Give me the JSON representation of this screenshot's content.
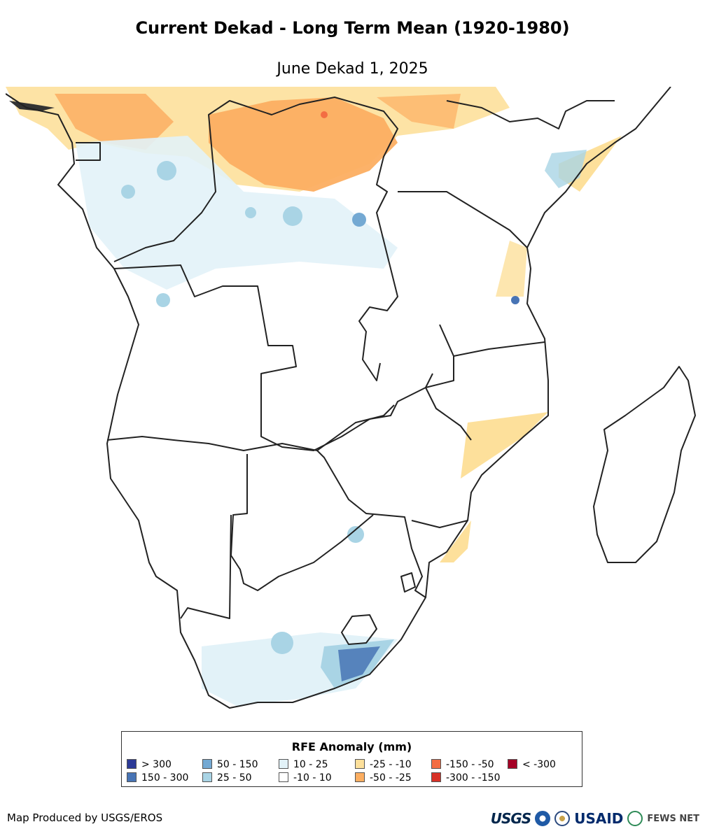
{
  "header": {
    "title": "Current Dekad - Long Term Mean (1920-1980)",
    "subtitle": "June Dekad 1, 2025"
  },
  "legend": {
    "title": "RFE Anomaly (mm)",
    "items": [
      {
        "label": "> 300",
        "color": "#2c3a97"
      },
      {
        "label": "150 - 300",
        "color": "#4874b5"
      },
      {
        "label": "50 - 150",
        "color": "#74a9d3"
      },
      {
        "label": "25 - 50",
        "color": "#a9d4e5"
      },
      {
        "label": "10 - 25",
        "color": "#e2f2f8"
      },
      {
        "label": "-10 - 10",
        "color": "#ffffff"
      },
      {
        "label": "-25 - -10",
        "color": "#fde09b"
      },
      {
        "label": "-50 - -25",
        "color": "#fcae61"
      },
      {
        "label": "-150 - -50",
        "color": "#f36d43"
      },
      {
        "label": "-300 - -150",
        "color": "#d73127"
      },
      {
        "label": "< -300",
        "color": "#a50026"
      }
    ]
  },
  "footer": {
    "credit": "Map Produced by USGS/EROS",
    "logos": [
      "USGS",
      "NOAA",
      "DOI",
      "USAID",
      "FEWS NET"
    ]
  }
}
